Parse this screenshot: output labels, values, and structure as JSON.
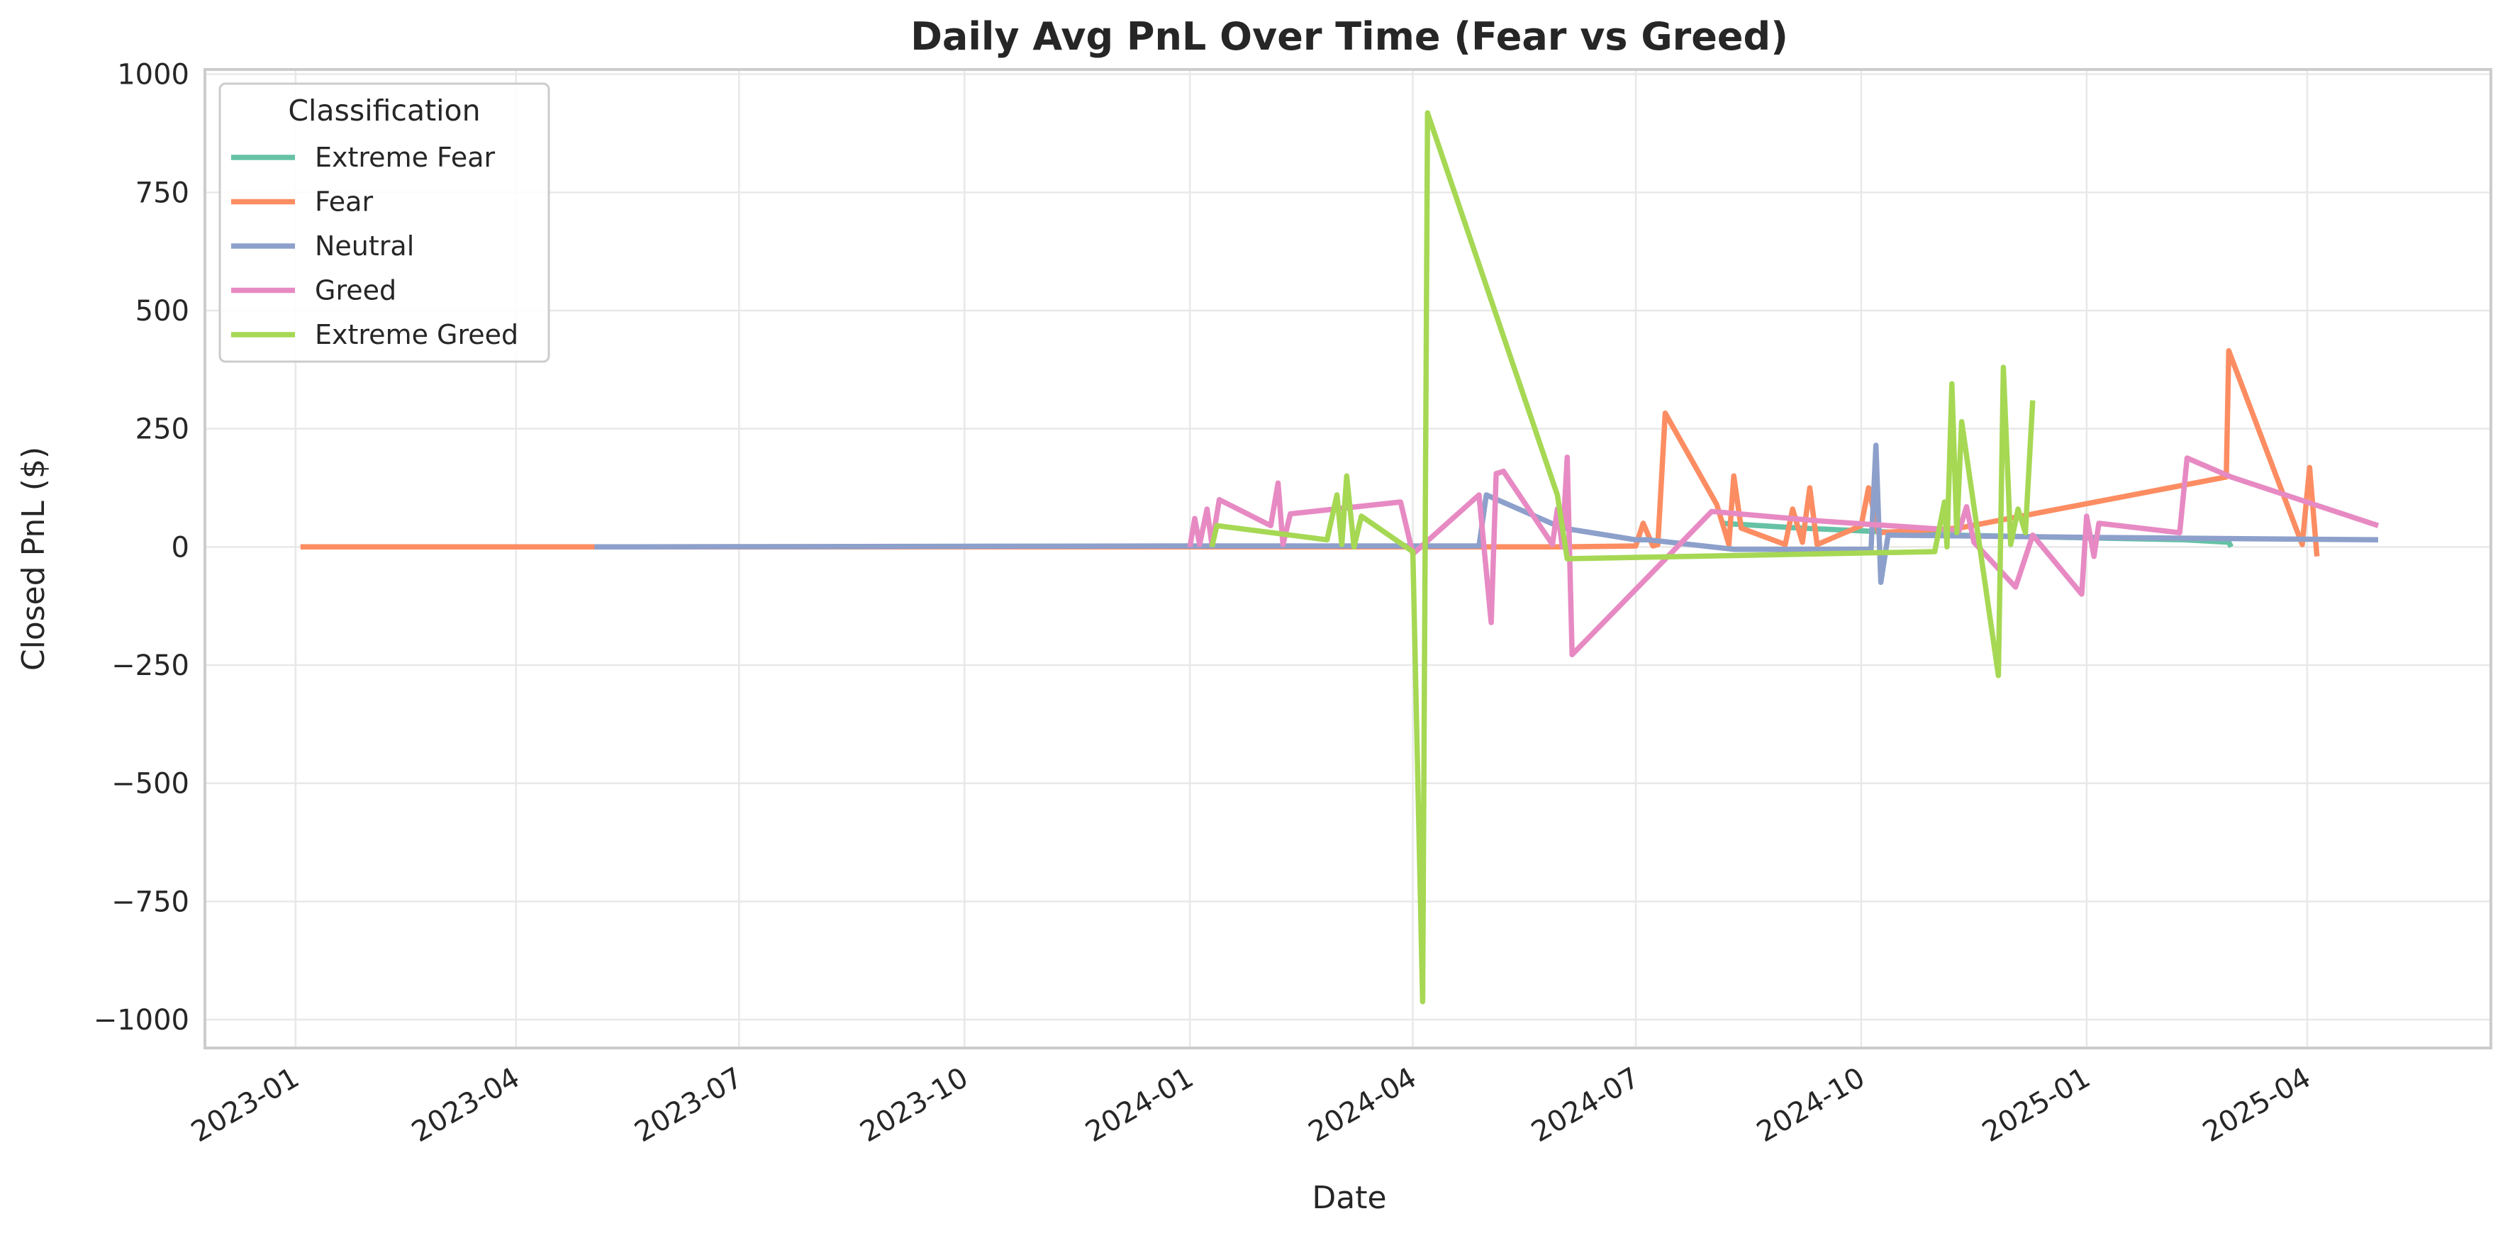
{
  "chart_data": {
    "type": "line",
    "title": "Daily Avg PnL Over Time (Fear vs Greed)",
    "xlabel": "Date",
    "ylabel": "Closed PnL ($)",
    "x_axis_type": "date",
    "xlim": [
      "2022-11-25",
      "2025-06-15"
    ],
    "ylim": [
      -1060,
      1010
    ],
    "x_ticks": [
      {
        "date": "2023-01-01",
        "label": "2023-01"
      },
      {
        "date": "2023-04-01",
        "label": "2023-04"
      },
      {
        "date": "2023-07-01",
        "label": "2023-07"
      },
      {
        "date": "2023-10-01",
        "label": "2023-10"
      },
      {
        "date": "2024-01-01",
        "label": "2024-01"
      },
      {
        "date": "2024-04-01",
        "label": "2024-04"
      },
      {
        "date": "2024-07-01",
        "label": "2024-07"
      },
      {
        "date": "2024-10-01",
        "label": "2024-10"
      },
      {
        "date": "2025-01-01",
        "label": "2025-01"
      },
      {
        "date": "2025-04-01",
        "label": "2025-04"
      }
    ],
    "y_ticks": [
      {
        "value": 1000,
        "label": "1000"
      },
      {
        "value": 750,
        "label": "750"
      },
      {
        "value": 500,
        "label": "500"
      },
      {
        "value": 250,
        "label": "250"
      },
      {
        "value": 0,
        "label": "0"
      },
      {
        "value": -250,
        "label": "−250"
      },
      {
        "value": -500,
        "label": "−500"
      },
      {
        "value": -750,
        "label": "−750"
      },
      {
        "value": -1000,
        "label": "−1000"
      }
    ],
    "grid": true,
    "legend": {
      "title": "Classification",
      "placement": "top-left"
    },
    "series": [
      {
        "name": "Extreme Fear",
        "color": "#66c2a5",
        "points": [
          [
            "2024-08-05",
            50
          ],
          [
            "2024-09-06",
            40
          ],
          [
            "2024-11-08",
            25
          ],
          [
            "2025-02-10",
            15
          ],
          [
            "2025-02-28",
            10
          ],
          [
            "2025-03-01",
            0
          ]
        ]
      },
      {
        "name": "Fear",
        "color": "#fc8d62",
        "points": [
          [
            "2023-01-03",
            0
          ],
          [
            "2023-05-05",
            0
          ],
          [
            "2024-01-01",
            0
          ],
          [
            "2024-06-01",
            0
          ],
          [
            "2024-07-01",
            2
          ],
          [
            "2024-07-04",
            50
          ],
          [
            "2024-07-08",
            2
          ],
          [
            "2024-07-10",
            5
          ],
          [
            "2024-07-13",
            283
          ],
          [
            "2024-08-03",
            90
          ],
          [
            "2024-08-08",
            5
          ],
          [
            "2024-08-10",
            150
          ],
          [
            "2024-08-13",
            40
          ],
          [
            "2024-08-31",
            5
          ],
          [
            "2024-09-03",
            80
          ],
          [
            "2024-09-07",
            10
          ],
          [
            "2024-09-10",
            125
          ],
          [
            "2024-09-13",
            5
          ],
          [
            "2024-10-01",
            45
          ],
          [
            "2024-10-04",
            125
          ],
          [
            "2024-10-08",
            30
          ],
          [
            "2024-11-10",
            40
          ],
          [
            "2025-02-27",
            148
          ],
          [
            "2025-02-28",
            415
          ],
          [
            "2025-03-30",
            5
          ],
          [
            "2025-04-02",
            168
          ],
          [
            "2025-04-05",
            -20
          ]
        ]
      },
      {
        "name": "Neutral",
        "color": "#8da0cb",
        "points": [
          [
            "2023-05-03",
            0
          ],
          [
            "2024-01-01",
            2
          ],
          [
            "2024-04-28",
            2
          ],
          [
            "2024-05-01",
            110
          ],
          [
            "2024-06-01",
            40
          ],
          [
            "2024-07-01",
            15
          ],
          [
            "2024-07-06",
            15
          ],
          [
            "2024-08-10",
            -5
          ],
          [
            "2024-10-05",
            -5
          ],
          [
            "2024-10-07",
            215
          ],
          [
            "2024-10-09",
            -75
          ],
          [
            "2024-10-12",
            25
          ],
          [
            "2025-01-05",
            20
          ],
          [
            "2025-04-30",
            15
          ]
        ]
      },
      {
        "name": "Greed",
        "color": "#e78ac3",
        "points": [
          [
            "2024-01-01",
            0
          ],
          [
            "2024-01-03",
            60
          ],
          [
            "2024-01-05",
            5
          ],
          [
            "2024-01-08",
            80
          ],
          [
            "2024-01-10",
            5
          ],
          [
            "2024-01-13",
            100
          ],
          [
            "2024-02-03",
            45
          ],
          [
            "2024-02-06",
            135
          ],
          [
            "2024-02-08",
            5
          ],
          [
            "2024-02-11",
            70
          ],
          [
            "2024-03-27",
            95
          ],
          [
            "2024-04-01",
            -15
          ],
          [
            "2024-04-28",
            110
          ],
          [
            "2024-05-03",
            -160
          ],
          [
            "2024-05-05",
            155
          ],
          [
            "2024-05-08",
            160
          ],
          [
            "2024-05-28",
            5
          ],
          [
            "2024-05-30",
            80
          ],
          [
            "2024-06-01",
            0
          ],
          [
            "2024-06-03",
            190
          ],
          [
            "2024-06-05",
            -228
          ],
          [
            "2024-08-01",
            75
          ],
          [
            "2024-09-14",
            55
          ],
          [
            "2024-11-10",
            35
          ],
          [
            "2024-11-13",
            85
          ],
          [
            "2024-11-16",
            10
          ],
          [
            "2024-12-03",
            -85
          ],
          [
            "2024-12-10",
            25
          ],
          [
            "2024-12-30",
            -100
          ],
          [
            "2025-01-01",
            65
          ],
          [
            "2025-01-04",
            -20
          ],
          [
            "2025-01-06",
            50
          ],
          [
            "2025-02-08",
            30
          ],
          [
            "2025-02-11",
            188
          ],
          [
            "2025-03-01",
            148
          ],
          [
            "2025-04-30",
            45
          ]
        ]
      },
      {
        "name": "Extreme Greed",
        "color": "#a6d854",
        "points": [
          [
            "2024-01-10",
            0
          ],
          [
            "2024-01-12",
            45
          ],
          [
            "2024-02-26",
            15
          ],
          [
            "2024-03-01",
            110
          ],
          [
            "2024-03-03",
            5
          ],
          [
            "2024-03-05",
            150
          ],
          [
            "2024-03-08",
            0
          ],
          [
            "2024-03-11",
            65
          ],
          [
            "2024-04-01",
            -10
          ],
          [
            "2024-04-05",
            -962
          ],
          [
            "2024-04-07",
            918
          ],
          [
            "2024-05-30",
            110
          ],
          [
            "2024-06-03",
            -25
          ],
          [
            "2024-10-31",
            -10
          ],
          [
            "2024-11-04",
            95
          ],
          [
            "2024-11-05",
            0
          ],
          [
            "2024-11-07",
            345
          ],
          [
            "2024-11-09",
            30
          ],
          [
            "2024-11-11",
            265
          ],
          [
            "2024-11-26",
            -272
          ],
          [
            "2024-11-28",
            380
          ],
          [
            "2024-12-01",
            5
          ],
          [
            "2024-12-04",
            80
          ],
          [
            "2024-12-07",
            30
          ],
          [
            "2024-12-10",
            310
          ]
        ]
      }
    ]
  }
}
